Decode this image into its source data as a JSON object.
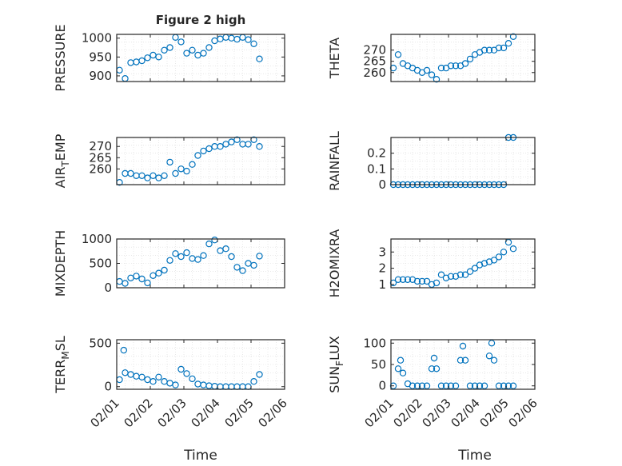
{
  "figure": {
    "title": "Figure 2 high",
    "xlabel": "Time"
  },
  "colors": {
    "marker": "#0072BD",
    "axis": "#262626",
    "grid": "#d9d9d9",
    "background": "#ffffff"
  },
  "chart_data": [
    {
      "type": "scatter",
      "ylabel": "PRESSURE",
      "x": [
        "02/01 02:00",
        "02/01 06:00",
        "02/01 10:00",
        "02/01 14:00",
        "02/01 18:00",
        "02/01 22:00",
        "02/02 02:00",
        "02/02 06:00",
        "02/02 10:00",
        "02/02 14:00",
        "02/02 18:00",
        "02/02 22:00",
        "02/03 02:00",
        "02/03 06:00",
        "02/03 10:00",
        "02/03 14:00",
        "02/03 18:00",
        "02/03 22:00",
        "02/04 02:00",
        "02/04 06:00",
        "02/04 10:00",
        "02/04 14:00",
        "02/04 18:00",
        "02/04 22:00",
        "02/05 02:00",
        "02/05 06:00"
      ],
      "y": [
        915,
        893,
        935,
        937,
        940,
        948,
        955,
        950,
        968,
        975,
        1002,
        990,
        960,
        968,
        955,
        960,
        975,
        993,
        998,
        1002,
        1000,
        997,
        1002,
        996,
        985,
        945
      ],
      "ylim": [
        885,
        1010
      ],
      "yticks": [
        900,
        950,
        1000
      ],
      "xticks": [
        "02/01",
        "02/02",
        "02/03",
        "02/04",
        "02/05",
        "02/06"
      ],
      "grid": true
    },
    {
      "type": "scatter",
      "ylabel": "THETA",
      "x": [
        "02/01 02:00",
        "02/01 06:00",
        "02/01 10:00",
        "02/01 14:00",
        "02/01 18:00",
        "02/01 22:00",
        "02/02 02:00",
        "02/02 06:00",
        "02/02 10:00",
        "02/02 14:00",
        "02/02 18:00",
        "02/02 22:00",
        "02/03 02:00",
        "02/03 06:00",
        "02/03 10:00",
        "02/03 14:00",
        "02/03 18:00",
        "02/03 22:00",
        "02/04 02:00",
        "02/04 06:00",
        "02/04 10:00",
        "02/04 14:00",
        "02/04 18:00",
        "02/04 22:00",
        "02/05 02:00",
        "02/05 06:00"
      ],
      "y": [
        262,
        268,
        264,
        263,
        262,
        261,
        260,
        261,
        259,
        257,
        262,
        262,
        263,
        263,
        263,
        264,
        266,
        268,
        269,
        270,
        270,
        270,
        271,
        271,
        273,
        276
      ],
      "ylim": [
        256,
        277
      ],
      "yticks": [
        260,
        265,
        270
      ],
      "xticks": [
        "02/01",
        "02/02",
        "02/03",
        "02/04",
        "02/05",
        "02/06"
      ],
      "grid": true
    },
    {
      "type": "scatter",
      "ylabel": "AIR_TEMP",
      "x": [
        "02/01 02:00",
        "02/01 06:00",
        "02/01 10:00",
        "02/01 14:00",
        "02/01 18:00",
        "02/01 22:00",
        "02/02 02:00",
        "02/02 06:00",
        "02/02 10:00",
        "02/02 14:00",
        "02/02 18:00",
        "02/02 22:00",
        "02/03 02:00",
        "02/03 06:00",
        "02/03 10:00",
        "02/03 14:00",
        "02/03 18:00",
        "02/03 22:00",
        "02/04 02:00",
        "02/04 06:00",
        "02/04 10:00",
        "02/04 14:00",
        "02/04 18:00",
        "02/04 22:00",
        "02/05 02:00",
        "02/05 06:00"
      ],
      "y": [
        254,
        258,
        258,
        257,
        257,
        256,
        257,
        256,
        257,
        263,
        258,
        260,
        259,
        262,
        266,
        268,
        269,
        270,
        270,
        271,
        272,
        273,
        271,
        271,
        273,
        270
      ],
      "ylim": [
        253,
        274
      ],
      "yticks": [
        260,
        265,
        270
      ],
      "xticks": [
        "02/01",
        "02/02",
        "02/03",
        "02/04",
        "02/05",
        "02/06"
      ],
      "grid": true
    },
    {
      "type": "scatter",
      "ylabel": "RAINFALL",
      "x": [
        "02/01 02:00",
        "02/01 06:00",
        "02/01 10:00",
        "02/01 14:00",
        "02/01 18:00",
        "02/01 22:00",
        "02/02 02:00",
        "02/02 06:00",
        "02/02 10:00",
        "02/02 14:00",
        "02/02 18:00",
        "02/02 22:00",
        "02/03 02:00",
        "02/03 06:00",
        "02/03 10:00",
        "02/03 14:00",
        "02/03 18:00",
        "02/03 22:00",
        "02/04 02:00",
        "02/04 06:00",
        "02/04 10:00",
        "02/04 14:00",
        "02/04 18:00",
        "02/04 22:00",
        "02/05 02:00",
        "02/05 06:00"
      ],
      "y": [
        0,
        0,
        0,
        0,
        0,
        0,
        0,
        0,
        0,
        0,
        0,
        0,
        0,
        0,
        0,
        0,
        0,
        0,
        0,
        0,
        0,
        0,
        0,
        0,
        0.3,
        0.3
      ],
      "ylim": [
        0,
        0.3
      ],
      "yticks": [
        0,
        0.1,
        0.2
      ],
      "xticks": [
        "02/01",
        "02/02",
        "02/03",
        "02/04",
        "02/05",
        "02/06"
      ],
      "grid": true
    },
    {
      "type": "scatter",
      "ylabel": "MIXDEPTH",
      "x": [
        "02/01 02:00",
        "02/01 06:00",
        "02/01 10:00",
        "02/01 14:00",
        "02/01 18:00",
        "02/01 22:00",
        "02/02 02:00",
        "02/02 06:00",
        "02/02 10:00",
        "02/02 14:00",
        "02/02 18:00",
        "02/02 22:00",
        "02/03 02:00",
        "02/03 06:00",
        "02/03 10:00",
        "02/03 14:00",
        "02/03 18:00",
        "02/03 22:00",
        "02/04 02:00",
        "02/04 06:00",
        "02/04 10:00",
        "02/04 14:00",
        "02/04 18:00",
        "02/04 22:00",
        "02/05 02:00",
        "02/05 06:00"
      ],
      "y": [
        130,
        90,
        200,
        240,
        180,
        100,
        250,
        300,
        360,
        560,
        700,
        640,
        720,
        600,
        580,
        660,
        900,
        980,
        760,
        800,
        640,
        420,
        350,
        500,
        460,
        650
      ],
      "ylim": [
        0,
        1000
      ],
      "yticks": [
        0,
        500,
        1000
      ],
      "xticks": [
        "02/01",
        "02/02",
        "02/03",
        "02/04",
        "02/05",
        "02/06"
      ],
      "grid": true
    },
    {
      "type": "scatter",
      "ylabel": "H2OMIXRA",
      "x": [
        "02/01 02:00",
        "02/01 06:00",
        "02/01 10:00",
        "02/01 14:00",
        "02/01 18:00",
        "02/01 22:00",
        "02/02 02:00",
        "02/02 06:00",
        "02/02 10:00",
        "02/02 14:00",
        "02/02 18:00",
        "02/02 22:00",
        "02/03 02:00",
        "02/03 06:00",
        "02/03 10:00",
        "02/03 14:00",
        "02/03 18:00",
        "02/03 22:00",
        "02/04 02:00",
        "02/04 06:00",
        "02/04 10:00",
        "02/04 14:00",
        "02/04 18:00",
        "02/04 22:00",
        "02/05 02:00",
        "02/05 06:00"
      ],
      "y": [
        1.1,
        1.3,
        1.3,
        1.3,
        1.3,
        1.2,
        1.2,
        1.2,
        1.0,
        1.1,
        1.6,
        1.4,
        1.5,
        1.5,
        1.6,
        1.6,
        1.8,
        2.0,
        2.2,
        2.3,
        2.4,
        2.5,
        2.7,
        3.0,
        3.6,
        3.2
      ],
      "ylim": [
        0.8,
        3.8
      ],
      "yticks": [
        1,
        2,
        3
      ],
      "xticks": [
        "02/01",
        "02/02",
        "02/03",
        "02/04",
        "02/05",
        "02/06"
      ],
      "grid": true
    },
    {
      "type": "scatter",
      "ylabel": "TERR_MSL",
      "x": [
        "02/01 02:00",
        "02/01 05:00",
        "02/01 06:00",
        "02/01 10:00",
        "02/01 14:00",
        "02/01 18:00",
        "02/01 22:00",
        "02/02 02:00",
        "02/02 06:00",
        "02/02 10:00",
        "02/02 14:00",
        "02/02 18:00",
        "02/02 22:00",
        "02/03 02:00",
        "02/03 06:00",
        "02/03 10:00",
        "02/03 14:00",
        "02/03 18:00",
        "02/03 22:00",
        "02/04 02:00",
        "02/04 06:00",
        "02/04 10:00",
        "02/04 14:00",
        "02/04 18:00",
        "02/04 22:00",
        "02/05 02:00",
        "02/05 06:00"
      ],
      "y": [
        80,
        420,
        160,
        140,
        120,
        110,
        80,
        60,
        110,
        60,
        40,
        20,
        200,
        150,
        90,
        30,
        20,
        10,
        5,
        0,
        0,
        0,
        0,
        0,
        0,
        60,
        140
      ],
      "ylim": [
        -30,
        540
      ],
      "yticks": [
        0,
        500
      ],
      "xticks": [
        "02/01",
        "02/02",
        "02/03",
        "02/04",
        "02/05",
        "02/06"
      ],
      "grid": true
    },
    {
      "type": "scatter",
      "ylabel": "SUN_FLUX",
      "x": [
        "02/01 02:00",
        "02/01 06:00",
        "02/01 08:00",
        "02/01 10:00",
        "02/01 14:00",
        "02/01 18:00",
        "02/01 22:00",
        "02/02 02:00",
        "02/02 06:00",
        "02/02 10:00",
        "02/02 12:00",
        "02/02 14:00",
        "02/02 18:00",
        "02/02 22:00",
        "02/03 02:00",
        "02/03 06:00",
        "02/03 10:00",
        "02/03 12:00",
        "02/03 14:00",
        "02/03 18:00",
        "02/03 22:00",
        "02/04 02:00",
        "02/04 06:00",
        "02/04 10:00",
        "02/04 12:00",
        "02/04 14:00",
        "02/04 18:00",
        "02/04 22:00",
        "02/05 02:00",
        "02/05 06:00"
      ],
      "y": [
        0,
        40,
        60,
        30,
        5,
        0,
        0,
        0,
        0,
        40,
        65,
        40,
        0,
        0,
        0,
        0,
        60,
        93,
        60,
        0,
        0,
        0,
        0,
        70,
        100,
        60,
        0,
        0,
        0,
        0
      ],
      "ylim": [
        -8,
        108
      ],
      "yticks": [
        0,
        50,
        100
      ],
      "xticks": [
        "02/01",
        "02/02",
        "02/03",
        "02/04",
        "02/05",
        "02/06"
      ],
      "grid": true
    }
  ]
}
